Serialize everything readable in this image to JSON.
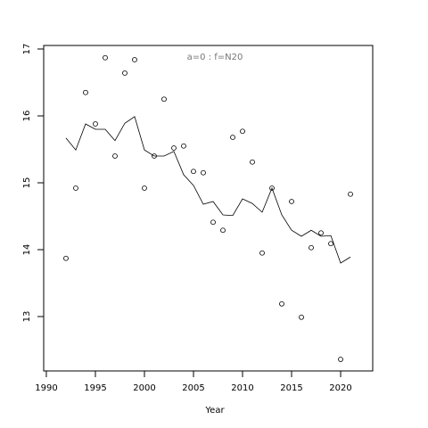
{
  "chart_data": {
    "type": "line",
    "annotation": "a=0  :  f=N20",
    "x_label": "Year",
    "x": [
      1992,
      1993,
      1994,
      1995,
      1996,
      1997,
      1998,
      1999,
      2000,
      2001,
      2002,
      2003,
      2004,
      2005,
      2006,
      2007,
      2008,
      2009,
      2010,
      2011,
      2012,
      2013,
      2014,
      2015,
      2016,
      2017,
      2018,
      2019,
      2020,
      2021
    ],
    "series": [
      {
        "type": "scatter",
        "color": "#000000",
        "values": [
          13.87,
          14.92,
          16.35,
          15.88,
          16.87,
          15.4,
          16.64,
          16.84,
          14.92,
          15.4,
          16.25,
          15.52,
          15.55,
          15.17,
          15.15,
          14.41,
          14.29,
          15.68,
          15.77,
          15.31,
          13.95,
          14.92,
          13.19,
          14.72,
          12.99,
          14.03,
          14.25,
          14.09,
          12.36,
          14.83
        ]
      },
      {
        "type": "line",
        "color": "#000000",
        "values": [
          15.67,
          15.49,
          15.88,
          15.8,
          15.8,
          15.63,
          15.89,
          15.99,
          15.49,
          15.4,
          15.4,
          15.47,
          15.12,
          14.96,
          14.68,
          14.72,
          14.52,
          14.51,
          14.76,
          14.69,
          14.56,
          14.92,
          14.52,
          14.29,
          14.2,
          14.29,
          14.2,
          14.21,
          13.8,
          13.89
        ]
      }
    ],
    "xlim": [
      1989.73,
      2023.27
    ],
    "xticks": [
      1990,
      1995,
      2000,
      2005,
      2010,
      2015,
      2020
    ],
    "ylim": [
      12.187,
      17.053
    ],
    "yticks": [
      13,
      14,
      15,
      16,
      17
    ]
  }
}
